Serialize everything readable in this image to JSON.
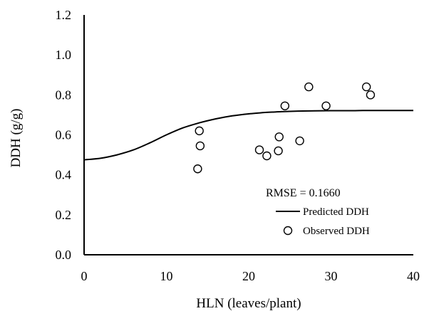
{
  "chart_data": {
    "type": "scatter",
    "title": "",
    "xlabel": "HLN (leaves/plant)",
    "ylabel": "DDH  (g/g)",
    "xlim": [
      0,
      40
    ],
    "ylim": [
      0,
      1.2
    ],
    "x_ticks": [
      "0",
      "10",
      "20",
      "30",
      "40"
    ],
    "y_ticks": [
      "0.0",
      "0.2",
      "0.4",
      "0.6",
      "0.8",
      "1.0",
      "1.2"
    ],
    "grid": false,
    "legend_position": "bottom-right",
    "annotation": "RMSE =  0.1660",
    "series": [
      {
        "name": "Predicted DDH",
        "kind": "line",
        "color": "#000000",
        "x": [
          0,
          2,
          4,
          6,
          8,
          10,
          12,
          14,
          16,
          18,
          20,
          22,
          24,
          26,
          28,
          30,
          32,
          34,
          36,
          38,
          40
        ],
        "y": [
          0.475,
          0.483,
          0.5,
          0.525,
          0.56,
          0.6,
          0.635,
          0.66,
          0.68,
          0.695,
          0.705,
          0.712,
          0.716,
          0.719,
          0.72,
          0.721,
          0.721,
          0.722,
          0.722,
          0.722,
          0.722
        ]
      },
      {
        "name": "Observed DDH",
        "kind": "scatter",
        "marker": "open-circle",
        "color": "#000000",
        "x": [
          13.8,
          14.0,
          14.1,
          21.3,
          22.2,
          23.6,
          23.7,
          24.4,
          26.2,
          27.3,
          29.4,
          34.3,
          34.8
        ],
        "y": [
          0.43,
          0.62,
          0.545,
          0.525,
          0.495,
          0.52,
          0.59,
          0.745,
          0.57,
          0.84,
          0.745,
          0.84,
          0.8
        ]
      }
    ]
  }
}
